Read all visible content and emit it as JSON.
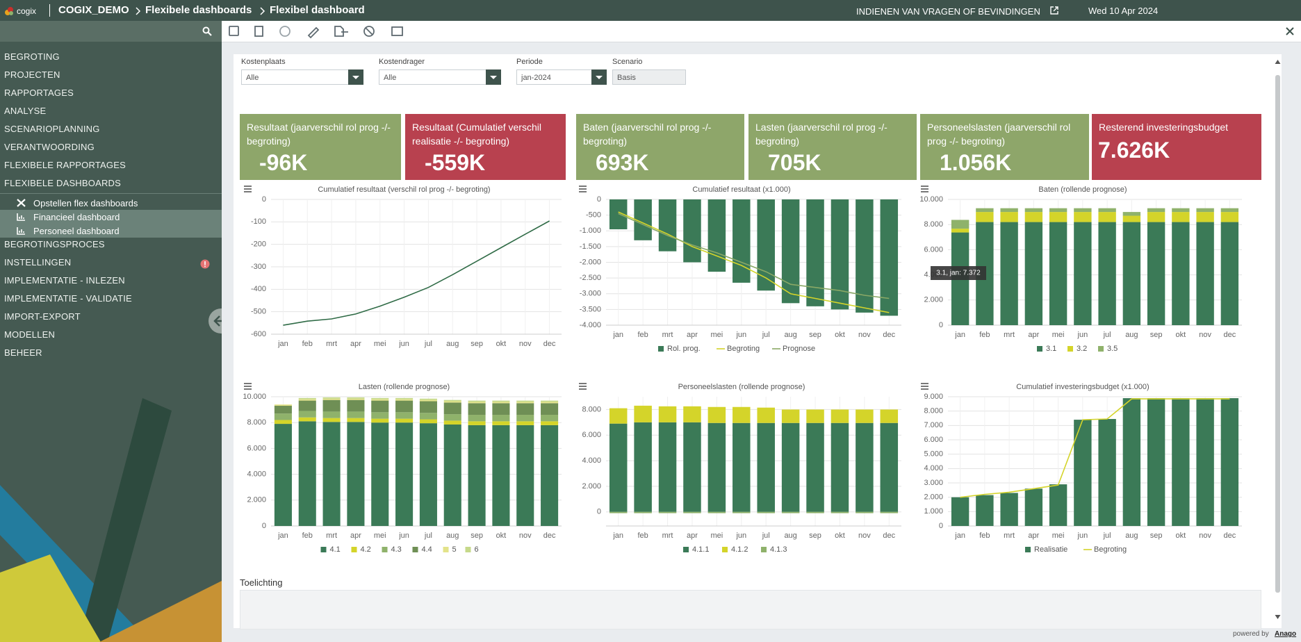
{
  "header": {
    "logo": "cogix",
    "breadcrumb": [
      "COGIX_DEMO",
      "Flexibele dashboards",
      "Flexibel dashboard"
    ],
    "feedback": "INDIENEN VAN VRAGEN OF BEVINDINGEN",
    "date": "Wed 10 Apr 2024"
  },
  "sidebar": {
    "items": [
      {
        "label": "BEGROTING"
      },
      {
        "label": "PROJECTEN"
      },
      {
        "label": "RAPPORTAGES"
      },
      {
        "label": "ANALYSE"
      },
      {
        "label": "SCENARIOPLANNING"
      },
      {
        "label": "VERANTWOORDING"
      },
      {
        "label": "FLEXIBELE RAPPORTAGES"
      },
      {
        "label": "FLEXIBELE DASHBOARDS",
        "children": [
          "Opstellen flex dashboards",
          "Financieel dashboard",
          "Personeel dashboard"
        ]
      },
      {
        "label": "BEGROTINGSPROCES"
      },
      {
        "label": "INSTELLINGEN"
      },
      {
        "label": "IMPLEMENTATIE - INLEZEN"
      },
      {
        "label": "IMPLEMENTATIE - VALIDATIE"
      },
      {
        "label": "IMPORT-EXPORT"
      },
      {
        "label": "MODELLEN"
      },
      {
        "label": "BEHEER"
      }
    ]
  },
  "filters": [
    {
      "label": "Kostenplaats",
      "value": "Alle"
    },
    {
      "label": "Kostendrager",
      "value": "Alle"
    },
    {
      "label": "Periode",
      "value": "jan-2024"
    },
    {
      "label": "Scenario",
      "value": "Basis"
    }
  ],
  "kpis": [
    {
      "label": "Resultaat (jaarverschil rol prog -/- begroting)",
      "value": "-96K",
      "color": "#8ea66a"
    },
    {
      "label": "Resultaat (Cumulatief verschil realisatie -/- begroting)",
      "value": "-559K",
      "color": "#b8414f"
    },
    {
      "label": "Baten (jaarverschil rol prog -/- begroting)",
      "value": "693K",
      "color": "#8ea66a"
    },
    {
      "label": "Lasten (jaarverschil rol prog -/- begroting)",
      "value": "705K",
      "color": "#8ea66a"
    },
    {
      "label": "Personeelslasten (jaarverschil rol prog -/- begroting)",
      "value": "1.056K",
      "color": "#8ea66a"
    },
    {
      "label": "Resterend investeringsbudget",
      "value": "7.626K",
      "color": "#b8414f"
    }
  ],
  "charts": [
    {
      "type": "line",
      "title": "Cumulatief resultaat (verschil rol prog -/- begroting)",
      "categories": [
        "jan",
        "feb",
        "mrt",
        "apr",
        "mei",
        "jun",
        "jul",
        "aug",
        "sep",
        "okt",
        "nov",
        "dec"
      ],
      "series": [
        {
          "color": "#2f6b46",
          "values": [
            -560,
            -542,
            -532,
            -510,
            -475,
            -435,
            -392,
            -335,
            -275,
            -215,
            -155,
            -96
          ]
        }
      ],
      "ylim": [
        -600,
        0
      ],
      "yticks": [
        0,
        -100,
        -200,
        -300,
        -400,
        -500,
        -600
      ],
      "grid": true
    },
    {
      "type": "combo",
      "title": "Cumulatief resultaat (x1.000)",
      "categories": [
        "jan",
        "feb",
        "mrt",
        "apr",
        "mei",
        "jun",
        "jul",
        "aug",
        "sep",
        "okt",
        "nov",
        "dec"
      ],
      "series": [
        {
          "name": "Rol. prog.",
          "type": "bar",
          "color": "#3b7a57",
          "values": [
            -950,
            -1300,
            -1650,
            -2000,
            -2300,
            -2650,
            -2900,
            -3300,
            -3400,
            -3500,
            -3600,
            -3700
          ]
        },
        {
          "name": "Begroting",
          "type": "line",
          "color": "#d4d42a",
          "values": [
            -400,
            -750,
            -1100,
            -1500,
            -1800,
            -2100,
            -2500,
            -3000,
            -3150,
            -3300,
            -3450,
            -3600
          ]
        },
        {
          "name": "Prognose",
          "type": "line",
          "color": "#8aa866",
          "values": [
            -450,
            -800,
            -1150,
            -1450,
            -1700,
            -2000,
            -2300,
            -2700,
            -2800,
            -2900,
            -3050,
            -3150
          ]
        }
      ],
      "ylim": [
        -4000,
        0
      ],
      "yticks": [
        0,
        -500,
        {
          "value": -1000,
          "label": "-1.000"
        },
        {
          "value": -1500,
          "label": "-1.500"
        },
        {
          "value": -2000,
          "label": "-2.000"
        },
        {
          "value": -2500,
          "label": "-2.500"
        },
        {
          "value": -3000,
          "label": "-3.000"
        },
        {
          "value": -3500,
          "label": "-3.500"
        },
        {
          "value": -4000,
          "label": "-4.000"
        }
      ],
      "grid": true
    },
    {
      "type": "stacked_bar",
      "title": "Baten (rollende prognose)",
      "categories": [
        "jan",
        "feb",
        "mrt",
        "apr",
        "mei",
        "jun",
        "jul",
        "aug",
        "sep",
        "okt",
        "nov",
        "dec"
      ],
      "series": [
        {
          "name": "3.1",
          "color": "#3b7a57",
          "values": [
            7372,
            8200,
            8200,
            8200,
            8200,
            8200,
            8200,
            8200,
            8200,
            8200,
            8200,
            8200
          ]
        },
        {
          "name": "3.2",
          "color": "#d4d42a",
          "values": [
            300,
            800,
            800,
            800,
            800,
            800,
            800,
            500,
            800,
            800,
            800,
            800
          ]
        },
        {
          "name": "3.5",
          "color": "#8fb26b",
          "values": [
            700,
            300,
            300,
            300,
            300,
            300,
            300,
            300,
            300,
            300,
            300,
            300
          ]
        }
      ],
      "ylim": [
        0,
        10000
      ],
      "yticks": [
        0,
        {
          "value": 2000,
          "label": "2.000"
        },
        {
          "value": 4000,
          "label": "4.000"
        },
        {
          "value": 6000,
          "label": "6.000"
        },
        {
          "value": 8000,
          "label": "8.000"
        },
        {
          "value": 10000,
          "label": "10.000"
        }
      ],
      "grid": true,
      "tooltip": "3.1, jan: 7.372"
    },
    {
      "type": "stacked_bar",
      "title": "Lasten (rollende prognose)",
      "categories": [
        "jan",
        "feb",
        "mrt",
        "apr",
        "mei",
        "jun",
        "jul",
        "aug",
        "sep",
        "okt",
        "nov",
        "dec"
      ],
      "series": [
        {
          "name": "4.1",
          "color": "#3b7a57",
          "values": [
            7900,
            8100,
            8050,
            8050,
            8000,
            8000,
            7950,
            7850,
            7800,
            7800,
            7800,
            7800
          ]
        },
        {
          "name": "4.2",
          "color": "#d4d42a",
          "values": [
            300,
            300,
            300,
            300,
            300,
            300,
            300,
            300,
            300,
            300,
            300,
            300
          ]
        },
        {
          "name": "4.3",
          "color": "#8fb26b",
          "values": [
            500,
            500,
            500,
            500,
            500,
            500,
            500,
            500,
            500,
            500,
            500,
            500
          ]
        },
        {
          "name": "4.4",
          "color": "#6f8f55",
          "values": [
            600,
            800,
            900,
            900,
            900,
            900,
            900,
            900,
            900,
            900,
            900,
            900
          ]
        },
        {
          "name": "5",
          "color": "#e3e38a",
          "values": [
            100,
            100,
            100,
            100,
            100,
            100,
            100,
            100,
            100,
            100,
            100,
            100
          ]
        },
        {
          "name": "6",
          "color": "#c6d98a",
          "values": [
            0,
            100,
            100,
            100,
            100,
            100,
            100,
            100,
            100,
            100,
            100,
            100
          ]
        }
      ],
      "ylim": [
        0,
        10000
      ],
      "yticks": [
        0,
        {
          "value": 2000,
          "label": "2.000"
        },
        {
          "value": 4000,
          "label": "4.000"
        },
        {
          "value": 6000,
          "label": "6.000"
        },
        {
          "value": 8000,
          "label": "8.000"
        },
        {
          "value": 10000,
          "label": "10.000"
        }
      ],
      "grid": true
    },
    {
      "type": "stacked_bar",
      "title": "Personeelslasten (rollende prognose)",
      "categories": [
        "jan",
        "feb",
        "mrt",
        "apr",
        "mei",
        "jun",
        "jul",
        "aug",
        "sep",
        "okt",
        "nov",
        "dec"
      ],
      "series": [
        {
          "name": "4.1.1",
          "color": "#3b7a57",
          "values": [
            6900,
            7000,
            7000,
            7000,
            6950,
            6950,
            6950,
            6950,
            6950,
            6950,
            6950,
            6950
          ]
        },
        {
          "name": "4.1.2",
          "color": "#d4d42a",
          "values": [
            1200,
            1300,
            1250,
            1250,
            1250,
            1250,
            1200,
            1050,
            1050,
            1050,
            1050,
            1050
          ]
        },
        {
          "name": "4.1.3",
          "color": "#8fb26b",
          "values": [
            -100,
            -100,
            -100,
            -100,
            -100,
            -100,
            -100,
            -100,
            -100,
            -100,
            -100,
            -100
          ]
        }
      ],
      "ylim": [
        -1100,
        9000
      ],
      "yticks": [
        0,
        {
          "value": 2000,
          "label": "2.000"
        },
        {
          "value": 4000,
          "label": "4.000"
        },
        {
          "value": 6000,
          "label": "6.000"
        },
        {
          "value": 8000,
          "label": "8.000"
        }
      ],
      "grid": true
    },
    {
      "type": "combo",
      "title": "Cumulatief investeringsbudget (x1.000)",
      "categories": [
        "jan",
        "feb",
        "mrt",
        "apr",
        "mei",
        "jun",
        "jul",
        "aug",
        "sep",
        "okt",
        "nov",
        "dec"
      ],
      "series": [
        {
          "name": "Realisatie",
          "type": "bar",
          "color": "#3b7a57",
          "values": [
            2000,
            2150,
            2300,
            2600,
            2900,
            7400,
            7450,
            8900,
            8900,
            8900,
            8900,
            8900
          ]
        },
        {
          "name": "Begroting",
          "type": "line",
          "color": "#d4d42a",
          "values": [
            2000,
            2200,
            2350,
            2600,
            2850,
            7400,
            7450,
            8850,
            8850,
            8850,
            8850,
            8850
          ]
        }
      ],
      "ylim": [
        0,
        9000
      ],
      "yticks": [
        0,
        {
          "value": 1000,
          "label": "1.000"
        },
        {
          "value": 2000,
          "label": "2.000"
        },
        {
          "value": 3000,
          "label": "3.000"
        },
        {
          "value": 4000,
          "label": "4.000"
        },
        {
          "value": 5000,
          "label": "5.000"
        },
        {
          "value": 6000,
          "label": "6.000"
        },
        {
          "value": 7000,
          "label": "7.000"
        },
        {
          "value": 8000,
          "label": "8.000"
        },
        {
          "value": 9000,
          "label": "9.000"
        }
      ],
      "grid": true
    }
  ],
  "notes": {
    "label": "Toelichting"
  },
  "footer": {
    "prefix": "powered by",
    "brand": "Anago"
  }
}
